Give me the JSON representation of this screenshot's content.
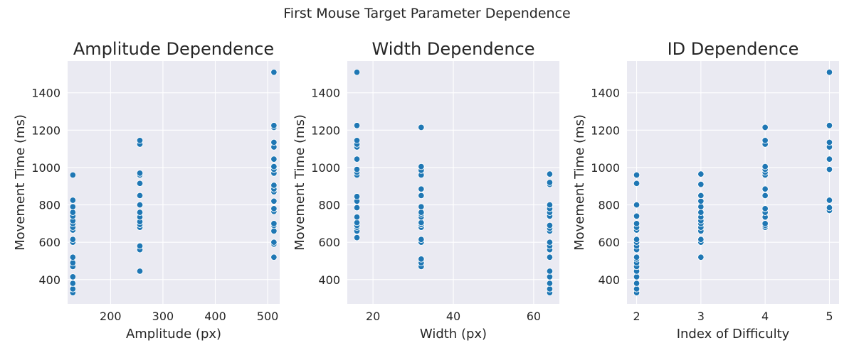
{
  "figure": {
    "title": "First Mouse Target Parameter Dependence",
    "marker_color": "#1f77b4",
    "background_color": "#eaeaf2",
    "grid": true
  },
  "chart_data": [
    {
      "type": "scatter",
      "title": "Amplitude Dependence",
      "xlabel": "Amplitude (px)",
      "ylabel": "Movement Time (ms)",
      "xlim": [
        118,
        523
      ],
      "ylim": [
        270,
        1570
      ],
      "xticks": [
        200,
        300,
        400,
        500
      ],
      "yticks": [
        400,
        600,
        800,
        1000,
        1200,
        1400
      ],
      "series": [
        {
          "points": [
            [
              128,
              330
            ],
            [
              128,
              350
            ],
            [
              128,
              380
            ],
            [
              128,
              415
            ],
            [
              128,
              470
            ],
            [
              128,
              490
            ],
            [
              128,
              520
            ],
            [
              128,
              600
            ],
            [
              128,
              615
            ],
            [
              128,
              665
            ],
            [
              128,
              680
            ],
            [
              128,
              700
            ],
            [
              128,
              715
            ],
            [
              128,
              740
            ],
            [
              128,
              760
            ],
            [
              128,
              790
            ],
            [
              128,
              825
            ],
            [
              128,
              960
            ],
            [
              256,
              445
            ],
            [
              256,
              560
            ],
            [
              256,
              580
            ],
            [
              256,
              680
            ],
            [
              256,
              695
            ],
            [
              256,
              710
            ],
            [
              256,
              735
            ],
            [
              256,
              760
            ],
            [
              256,
              800
            ],
            [
              256,
              850
            ],
            [
              256,
              915
            ],
            [
              256,
              960
            ],
            [
              256,
              970
            ],
            [
              256,
              1125
            ],
            [
              256,
              1145
            ],
            [
              512,
              520
            ],
            [
              512,
              590
            ],
            [
              512,
              600
            ],
            [
              512,
              660
            ],
            [
              512,
              690
            ],
            [
              512,
              700
            ],
            [
              512,
              765
            ],
            [
              512,
              780
            ],
            [
              512,
              820
            ],
            [
              512,
              870
            ],
            [
              512,
              885
            ],
            [
              512,
              905
            ],
            [
              512,
              970
            ],
            [
              512,
              990
            ],
            [
              512,
              1005
            ],
            [
              512,
              1045
            ],
            [
              512,
              1110
            ],
            [
              512,
              1135
            ],
            [
              512,
              1215
            ],
            [
              512,
              1225
            ],
            [
              512,
              1510
            ]
          ]
        }
      ]
    },
    {
      "type": "scatter",
      "title": "Width Dependence",
      "xlabel": "Width (px)",
      "ylabel": "Movement Time (ms)",
      "xlim": [
        13.6,
        66.4
      ],
      "ylim": [
        270,
        1570
      ],
      "xticks": [
        20,
        40,
        60
      ],
      "yticks": [
        400,
        600,
        800,
        1000,
        1200,
        1400
      ],
      "series": [
        {
          "points": [
            [
              16,
              625
            ],
            [
              16,
              660
            ],
            [
              16,
              680
            ],
            [
              16,
              690
            ],
            [
              16,
              705
            ],
            [
              16,
              735
            ],
            [
              16,
              785
            ],
            [
              16,
              820
            ],
            [
              16,
              845
            ],
            [
              16,
              960
            ],
            [
              16,
              975
            ],
            [
              16,
              990
            ],
            [
              16,
              1045
            ],
            [
              16,
              1110
            ],
            [
              16,
              1125
            ],
            [
              16,
              1145
            ],
            [
              16,
              1225
            ],
            [
              16,
              1510
            ],
            [
              32,
              470
            ],
            [
              32,
              490
            ],
            [
              32,
              510
            ],
            [
              32,
              600
            ],
            [
              32,
              615
            ],
            [
              32,
              680
            ],
            [
              32,
              695
            ],
            [
              32,
              705
            ],
            [
              32,
              735
            ],
            [
              32,
              750
            ],
            [
              32,
              760
            ],
            [
              32,
              790
            ],
            [
              32,
              850
            ],
            [
              32,
              885
            ],
            [
              32,
              960
            ],
            [
              32,
              985
            ],
            [
              32,
              1005
            ],
            [
              32,
              1215
            ],
            [
              64,
              330
            ],
            [
              64,
              350
            ],
            [
              64,
              380
            ],
            [
              64,
              415
            ],
            [
              64,
              445
            ],
            [
              64,
              520
            ],
            [
              64,
              560
            ],
            [
              64,
              580
            ],
            [
              64,
              600
            ],
            [
              64,
              660
            ],
            [
              64,
              675
            ],
            [
              64,
              690
            ],
            [
              64,
              740
            ],
            [
              64,
              760
            ],
            [
              64,
              780
            ],
            [
              64,
              800
            ],
            [
              64,
              910
            ],
            [
              64,
              920
            ],
            [
              64,
              965
            ]
          ]
        }
      ]
    },
    {
      "type": "scatter",
      "title": "ID Dependence",
      "xlabel": "Index of Difficulty",
      "ylabel": "Movement Time (ms)",
      "xlim": [
        1.85,
        5.15
      ],
      "ylim": [
        270,
        1570
      ],
      "xticks": [
        2,
        3,
        4,
        5
      ],
      "yticks": [
        400,
        600,
        800,
        1000,
        1200,
        1400
      ],
      "series": [
        {
          "points": [
            [
              2,
              330
            ],
            [
              2,
              350
            ],
            [
              2,
              380
            ],
            [
              2,
              415
            ],
            [
              2,
              445
            ],
            [
              2,
              470
            ],
            [
              2,
              490
            ],
            [
              2,
              510
            ],
            [
              2,
              520
            ],
            [
              2,
              560
            ],
            [
              2,
              580
            ],
            [
              2,
              600
            ],
            [
              2,
              615
            ],
            [
              2,
              665
            ],
            [
              2,
              680
            ],
            [
              2,
              700
            ],
            [
              2,
              740
            ],
            [
              2,
              800
            ],
            [
              2,
              915
            ],
            [
              2,
              960
            ],
            [
              3,
              520
            ],
            [
              3,
              600
            ],
            [
              3,
              615
            ],
            [
              3,
              660
            ],
            [
              3,
              680
            ],
            [
              3,
              700
            ],
            [
              3,
              715
            ],
            [
              3,
              735
            ],
            [
              3,
              760
            ],
            [
              3,
              790
            ],
            [
              3,
              820
            ],
            [
              3,
              850
            ],
            [
              3,
              910
            ],
            [
              3,
              965
            ],
            [
              4,
              680
            ],
            [
              4,
              690
            ],
            [
              4,
              700
            ],
            [
              4,
              735
            ],
            [
              4,
              760
            ],
            [
              4,
              780
            ],
            [
              4,
              850
            ],
            [
              4,
              885
            ],
            [
              4,
              960
            ],
            [
              4,
              975
            ],
            [
              4,
              990
            ],
            [
              4,
              1005
            ],
            [
              4,
              1125
            ],
            [
              4,
              1145
            ],
            [
              4,
              1215
            ],
            [
              5,
              770
            ],
            [
              5,
              785
            ],
            [
              5,
              825
            ],
            [
              5,
              990
            ],
            [
              5,
              1045
            ],
            [
              5,
              1110
            ],
            [
              5,
              1135
            ],
            [
              5,
              1225
            ],
            [
              5,
              1510
            ]
          ]
        }
      ]
    }
  ]
}
